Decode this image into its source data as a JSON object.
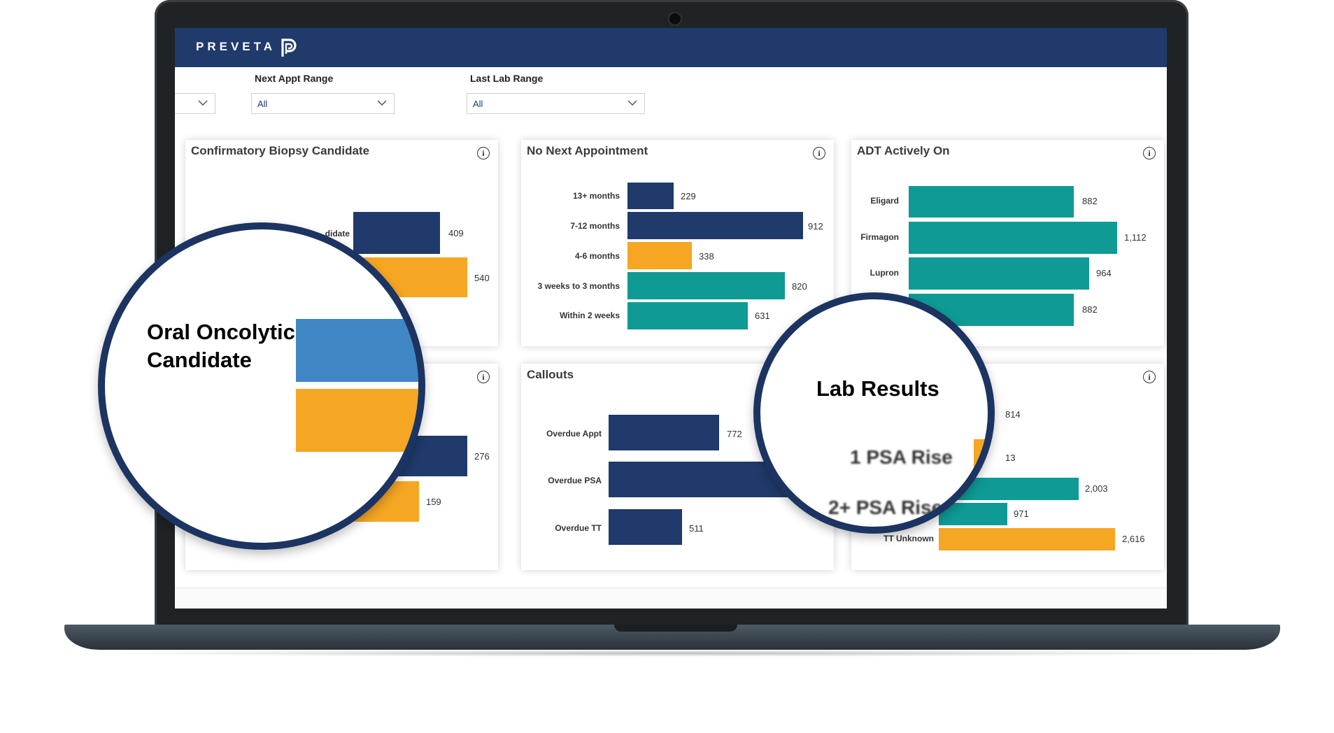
{
  "brand": {
    "name": "PREVETA",
    "logo_icon": "preveta-p-logo-icon"
  },
  "filters": [
    {
      "label": "",
      "value": ""
    },
    {
      "label": "Next Appt Range",
      "value": "All"
    },
    {
      "label": "Last Lab Range",
      "value": "All"
    }
  ],
  "panels": {
    "biopsy": {
      "title": "Confirmatory Biopsy Candidate",
      "visible_label": "didate",
      "values": [
        "409",
        "540"
      ]
    },
    "next_appt": {
      "title": "No Next Appointment",
      "rows": [
        {
          "label": "13+ months",
          "value": "229"
        },
        {
          "label": "7-12 months",
          "value": "912"
        },
        {
          "label": "4-6 months",
          "value": "338"
        },
        {
          "label": "3 weeks to 3 months",
          "value": "820"
        },
        {
          "label": "Within 2 weeks",
          "value": "631"
        }
      ]
    },
    "adt": {
      "title": "ADT Actively On",
      "rows": [
        {
          "label": "Eligard",
          "value": "882"
        },
        {
          "label": "Firmagon",
          "value": "1,112"
        },
        {
          "label": "Lupron",
          "value": "964"
        },
        {
          "label": "",
          "value": "882"
        }
      ]
    },
    "oral": {
      "values": [
        "276",
        "159"
      ]
    },
    "callouts": {
      "title": "Callouts",
      "rows": [
        {
          "label": "Overdue Appt",
          "value": "772"
        },
        {
          "label": "Overdue PSA",
          "value": ""
        },
        {
          "label": "Overdue TT",
          "value": "511"
        }
      ]
    },
    "lab": {
      "values": [
        "814",
        "13",
        "2,003",
        "971",
        "2,616"
      ],
      "last_label": "TT Unknown"
    }
  },
  "magnifiers": {
    "oral": {
      "title_line1": "Oral Oncolytic",
      "title_line2": "Candidate"
    },
    "lab": {
      "title": "Lab Results",
      "row1": "1 PSA Rise",
      "row2": "2+ PSA Rise"
    }
  },
  "colors": {
    "navy": "#1f3a6b",
    "orange": "#f5a623",
    "teal": "#0f9a95",
    "blue": "#3f86c4"
  }
}
